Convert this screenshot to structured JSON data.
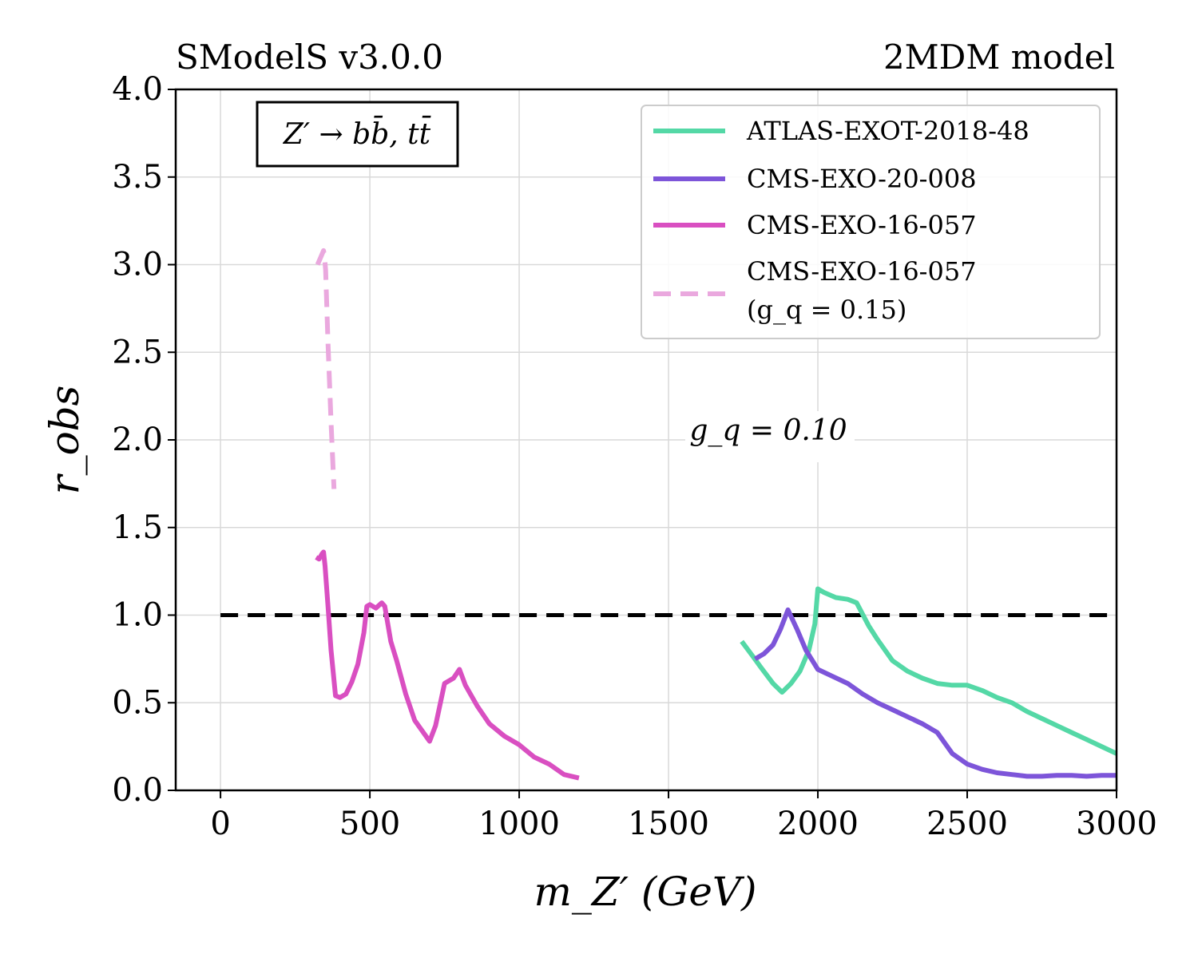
{
  "header": {
    "left_text": "SModelS v3.0.0",
    "right_text": "2MDM model"
  },
  "annotations": {
    "process_box": "Z′ → bb̄, tt̄",
    "coupling_label": "g_q = 0.10"
  },
  "chart_data": {
    "type": "line",
    "xlabel": "m_Z′ (GeV)",
    "ylabel": "r_obs",
    "xlim": [
      -150,
      3000
    ],
    "ylim": [
      0,
      4.0
    ],
    "xticks": [
      "0",
      "500",
      "1000",
      "1500",
      "2000",
      "2500",
      "3000"
    ],
    "yticks": [
      "0.0",
      "0.5",
      "1.0",
      "1.5",
      "2.0",
      "2.5",
      "3.0",
      "3.5",
      "4.0"
    ],
    "grid": true,
    "legend_position": "top-right",
    "reference_line": {
      "y": 1.0,
      "x_start": 0,
      "x_end": 3000,
      "color": "#000000",
      "style": "dashed"
    },
    "series": [
      {
        "name": "ATLAS-EXOT-2018-48",
        "color": "#54d8a6",
        "style": "solid",
        "x": [
          1745,
          1780,
          1810,
          1850,
          1880,
          1910,
          1940,
          1970,
          1990,
          2000,
          2020,
          2060,
          2100,
          2130,
          2170,
          2200,
          2250,
          2300,
          2350,
          2400,
          2450,
          2500,
          2550,
          2600,
          2650,
          2700,
          2750,
          2800,
          2850,
          2900,
          2950,
          3000
        ],
        "y": [
          0.85,
          0.77,
          0.7,
          0.61,
          0.56,
          0.61,
          0.68,
          0.8,
          0.95,
          1.15,
          1.13,
          1.1,
          1.09,
          1.07,
          0.94,
          0.86,
          0.74,
          0.68,
          0.64,
          0.61,
          0.6,
          0.6,
          0.57,
          0.53,
          0.5,
          0.45,
          0.41,
          0.37,
          0.33,
          0.29,
          0.25,
          0.21
        ]
      },
      {
        "name": "CMS-EXO-20-008",
        "color": "#7d55d9",
        "style": "solid",
        "x": [
          1790,
          1820,
          1850,
          1875,
          1900,
          1930,
          1960,
          2000,
          2050,
          2100,
          2150,
          2200,
          2250,
          2300,
          2350,
          2400,
          2450,
          2500,
          2550,
          2600,
          2650,
          2700,
          2750,
          2800,
          2850,
          2900,
          2950,
          3000
        ],
        "y": [
          0.75,
          0.78,
          0.83,
          0.92,
          1.03,
          0.92,
          0.8,
          0.69,
          0.65,
          0.61,
          0.55,
          0.5,
          0.46,
          0.42,
          0.38,
          0.33,
          0.21,
          0.15,
          0.12,
          0.1,
          0.09,
          0.08,
          0.08,
          0.085,
          0.085,
          0.08,
          0.085,
          0.085
        ]
      },
      {
        "name": "CMS-EXO-16-057",
        "color": "#d94fc1",
        "style": "solid",
        "x": [
          320,
          330,
          340,
          345,
          350,
          360,
          370,
          385,
          400,
          420,
          440,
          460,
          480,
          490,
          500,
          520,
          540,
          550,
          570,
          590,
          620,
          650,
          700,
          720,
          750,
          780,
          800,
          820,
          860,
          900,
          950,
          1000,
          1050,
          1100,
          1150,
          1200
        ],
        "y": [
          1.33,
          1.32,
          1.35,
          1.36,
          1.28,
          1.05,
          0.8,
          0.54,
          0.53,
          0.55,
          0.62,
          0.72,
          0.9,
          1.05,
          1.06,
          1.04,
          1.07,
          1.05,
          0.85,
          0.74,
          0.55,
          0.4,
          0.28,
          0.37,
          0.61,
          0.64,
          0.69,
          0.6,
          0.48,
          0.38,
          0.31,
          0.26,
          0.19,
          0.15,
          0.09,
          0.07
        ]
      },
      {
        "name": "CMS-EXO-16-057\n(g_q = 0.15)",
        "color": "#eaa8de",
        "style": "dashed",
        "x": [
          325,
          335,
          345,
          348,
          352,
          360,
          370,
          380
        ],
        "y": [
          3.0,
          3.04,
          3.08,
          3.05,
          2.97,
          2.55,
          2.1,
          1.72
        ]
      }
    ]
  }
}
